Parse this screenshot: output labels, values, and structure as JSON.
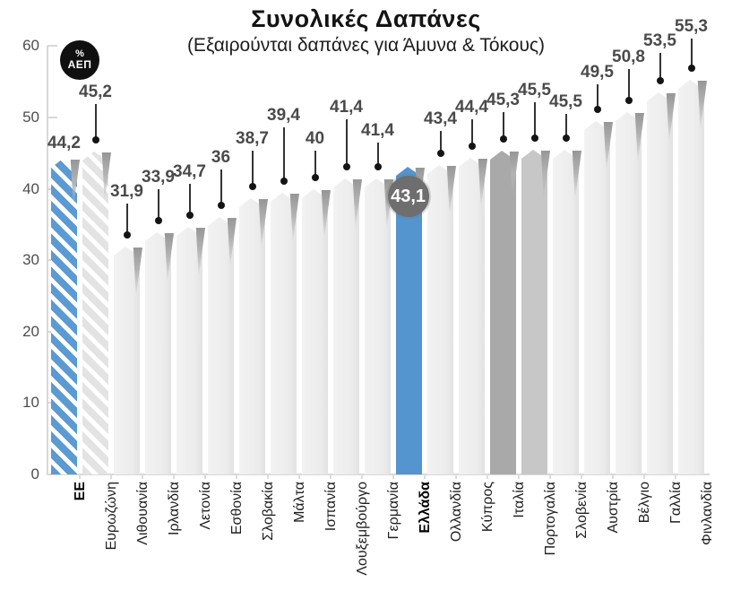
{
  "title": "Συνολικές Δαπάνες",
  "subtitle": "(Εξαιρούνται δαπάνες για Άμυνα & Τόκους)",
  "unit_badge": {
    "percent": "%",
    "unit": "ΑΕΠ"
  },
  "colors": {
    "highlight_blue": "#5494cf",
    "hatch_blue": "#5b9ad2",
    "light_bar": "#eeeeee",
    "hatch_gray": "#e3e3e3",
    "dark_bar": "#a9a9a9",
    "mid_bar": "#c7c7c7",
    "badge_gray": "#6e6e6e",
    "axis_gray": "#d8d8d8",
    "value_label_gray": "#4a4a4a"
  },
  "y_axis": {
    "ticks": [
      0,
      10,
      20,
      30,
      40,
      50,
      60
    ]
  },
  "chart_data": {
    "type": "bar",
    "title": "Συνολικές Δαπάνες",
    "subtitle": "(Εξαιρούνται δαπάνες για Άμυνα & Τόκους)",
    "unit": "% ΑΕΠ",
    "ylim": [
      0,
      60
    ],
    "grid": false,
    "legend": false,
    "categories": [
      "ΕΕ",
      "Ευρωζώνη",
      "Λιθουανία",
      "Ιρλανδία",
      "Λετονία",
      "Εσθονία",
      "Σλοβακία",
      "Μάλτα",
      "Ισπανία",
      "Λουξεμβούργο",
      "Γερμανία",
      "Ελλάδα",
      "Ολλανδία",
      "Κύπρος",
      "Ιταλία",
      "Πορτογαλία",
      "Σλοβενία",
      "Αυστρία",
      "Βέλγιο",
      "Γαλλία",
      "Φινλανδία"
    ],
    "values": [
      44.2,
      45.2,
      31.9,
      33.9,
      34.7,
      36,
      38.7,
      39.4,
      40,
      41.4,
      41.4,
      43.1,
      43.4,
      44.4,
      45.3,
      45.5,
      45.5,
      49.5,
      50.8,
      53.5,
      55.3
    ],
    "value_labels": [
      "44,2",
      "45,2",
      "31,9",
      "33,9",
      "34,7",
      "36",
      "38,7",
      "39,4",
      "40",
      "41,4",
      "41,4",
      "43,1",
      "43,4",
      "44,4",
      "45,3",
      "45,5",
      "45,5",
      "49,5",
      "50,8",
      "53,5",
      "55,3"
    ],
    "bar_styles": [
      "hatch-blue",
      "hatch-gray",
      "light",
      "light",
      "light",
      "light",
      "light",
      "light",
      "light",
      "light",
      "light",
      "solid-blue",
      "light",
      "light",
      "solid-dark",
      "solid-mid",
      "light",
      "light",
      "light",
      "light",
      "light"
    ],
    "label_display": [
      "plain",
      "leader",
      "leader",
      "leader",
      "leader",
      "leader",
      "leader",
      "leader",
      "leader",
      "leader",
      "leader",
      "badge",
      "leader",
      "leader",
      "leader",
      "leader",
      "leader",
      "leader",
      "leader",
      "leader",
      "leader"
    ],
    "bold_categories": [
      "ΕΕ",
      "Ελλάδα"
    ],
    "highlight": {
      "category": "Ελλάδα",
      "value": 43.1,
      "badge_label": "43,1"
    }
  }
}
